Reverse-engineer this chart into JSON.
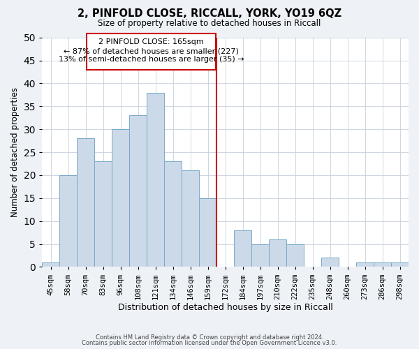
{
  "title": "2, PINFOLD CLOSE, RICCALL, YORK, YO19 6QZ",
  "subtitle": "Size of property relative to detached houses in Riccall",
  "xlabel": "Distribution of detached houses by size in Riccall",
  "ylabel": "Number of detached properties",
  "bin_labels": [
    "45sqm",
    "58sqm",
    "70sqm",
    "83sqm",
    "96sqm",
    "108sqm",
    "121sqm",
    "134sqm",
    "146sqm",
    "159sqm",
    "172sqm",
    "184sqm",
    "197sqm",
    "210sqm",
    "222sqm",
    "235sqm",
    "248sqm",
    "260sqm",
    "273sqm",
    "286sqm",
    "298sqm"
  ],
  "bar_values": [
    1,
    20,
    28,
    23,
    30,
    33,
    38,
    23,
    21,
    15,
    0,
    8,
    5,
    6,
    5,
    0,
    2,
    0,
    1,
    1,
    1
  ],
  "bar_color": "#ccd9e8",
  "bar_edgecolor": "#7aaac8",
  "vline_x": 9.5,
  "vline_color": "#cc0000",
  "annotation_title": "2 PINFOLD CLOSE: 165sqm",
  "annotation_line1": "← 87% of detached houses are smaller (227)",
  "annotation_line2": "13% of semi-detached houses are larger (35) →",
  "annotation_box_color": "#ffffff",
  "annotation_box_edgecolor": "#cc0000",
  "ylim": [
    0,
    50
  ],
  "yticks": [
    0,
    5,
    10,
    15,
    20,
    25,
    30,
    35,
    40,
    45,
    50
  ],
  "footer1": "Contains HM Land Registry data © Crown copyright and database right 2024.",
  "footer2": "Contains public sector information licensed under the Open Government Licence v3.0.",
  "bg_color": "#eef2f7",
  "plot_bg_color": "#ffffff"
}
